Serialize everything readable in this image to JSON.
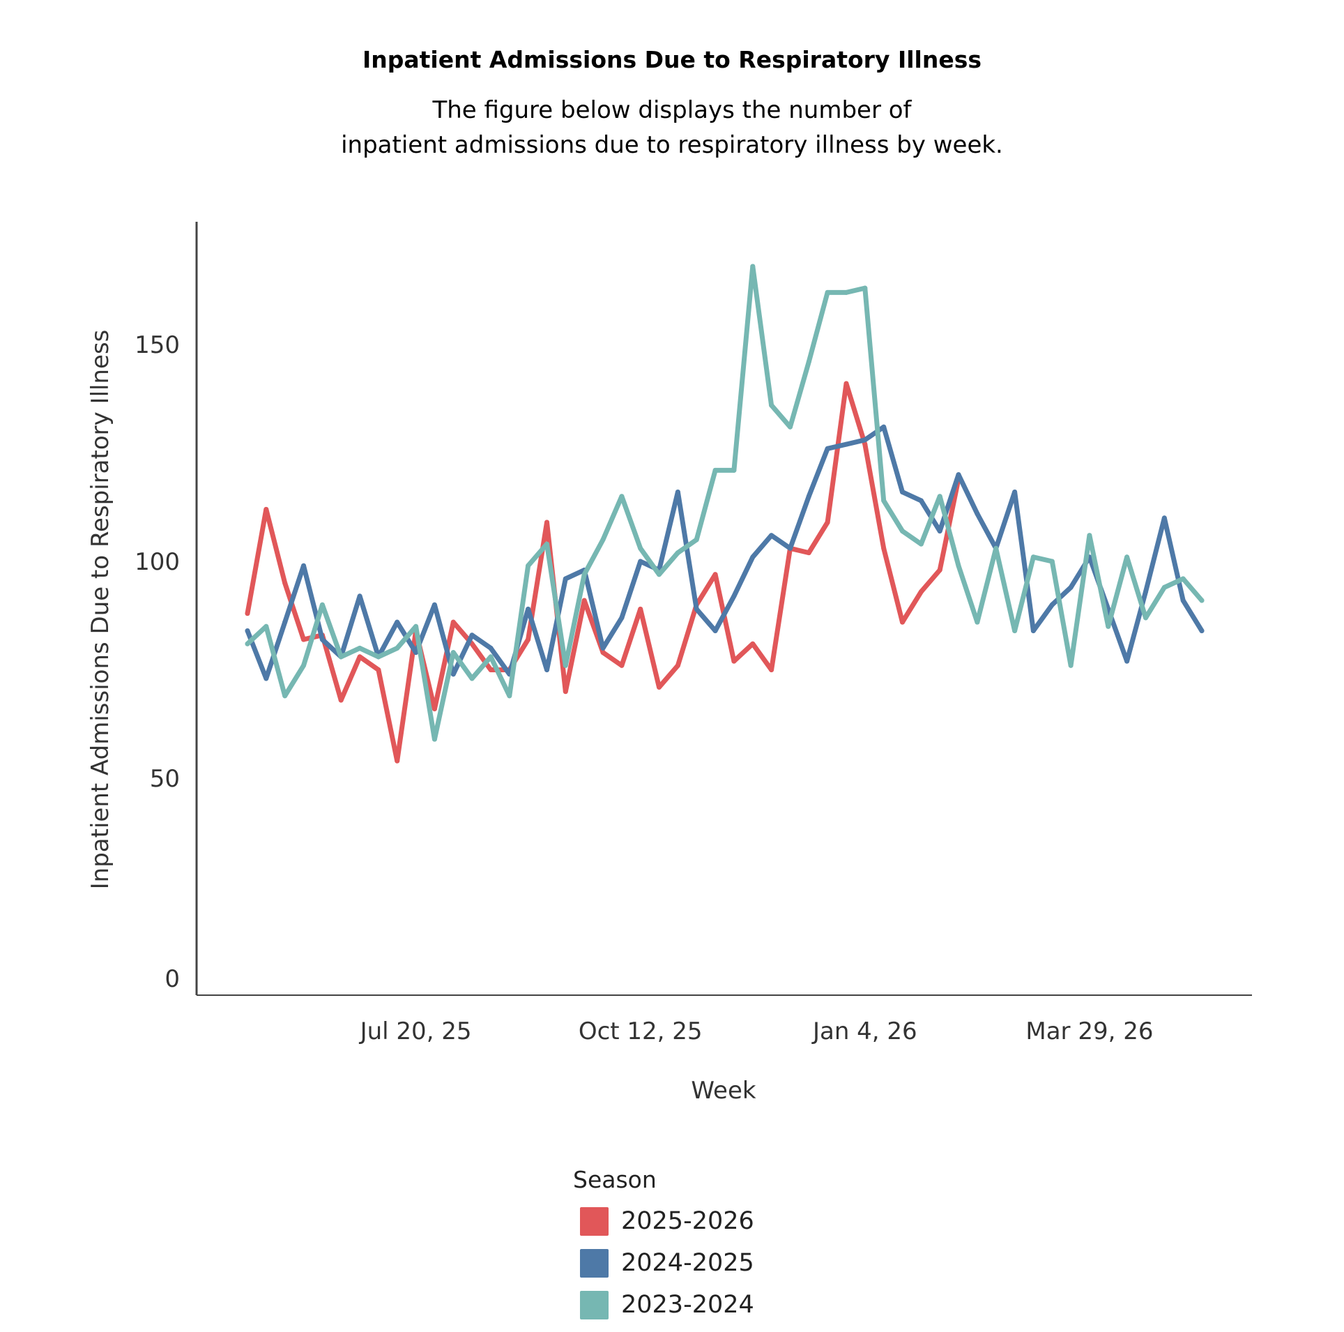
{
  "header": {
    "title": "Inpatient Admissions Due to Respiratory Illness",
    "subtitle_line1": "The figure below displays the number of",
    "subtitle_line2": "inpatient admissions due to respiratory illness by week."
  },
  "legend": {
    "title": "Season",
    "items": [
      {
        "label": "2025-2026",
        "color": "#e15759"
      },
      {
        "label": "2024-2025",
        "color": "#4e79a7"
      },
      {
        "label": "2023-2024",
        "color": "#76b7b2"
      }
    ]
  },
  "chart_data": {
    "type": "line",
    "title": "Inpatient Admissions Due to Respiratory Illness",
    "xlabel": "Week",
    "ylabel": "Inpatient Admissions Due to Respiratory Illness",
    "ylim": [
      0,
      180
    ],
    "yticks": [
      0,
      50,
      100,
      150
    ],
    "ytick_labels": [
      "0",
      "50",
      "100",
      "150"
    ],
    "x_count": 52,
    "xticks": [
      {
        "index": 9,
        "label": "Jul 20, 25"
      },
      {
        "index": 21,
        "label": "Oct 12, 25"
      },
      {
        "index": 33,
        "label": "Jan 4, 26"
      },
      {
        "index": 45,
        "label": "Mar 29, 26"
      }
    ],
    "grid": false,
    "legend_position": "bottom-center",
    "series": [
      {
        "name": "2025-2026",
        "color": "#e15759",
        "values": [
          88,
          112,
          95,
          82,
          83,
          68,
          78,
          75,
          54,
          84,
          66,
          86,
          81,
          75,
          75,
          82,
          109,
          70,
          91,
          79,
          76,
          89,
          71,
          76,
          90,
          97,
          77,
          81,
          75,
          103,
          102,
          109,
          141,
          127,
          103,
          86,
          93,
          98,
          119
        ]
      },
      {
        "name": "2024-2025",
        "color": "#4e79a7",
        "values": [
          84,
          73,
          86,
          99,
          82,
          78,
          92,
          78,
          86,
          79,
          90,
          74,
          83,
          80,
          74,
          89,
          75,
          96,
          98,
          80,
          87,
          100,
          98,
          116,
          89,
          84,
          92,
          101,
          106,
          103,
          115,
          126,
          127,
          128,
          131,
          116,
          114,
          107,
          120,
          111,
          103,
          116,
          84,
          90,
          94,
          101,
          89,
          77,
          93,
          110,
          91,
          84
        ]
      },
      {
        "name": "2023-2024",
        "color": "#76b7b2",
        "values": [
          81,
          85,
          69,
          76,
          90,
          78,
          80,
          78,
          80,
          85,
          59,
          79,
          73,
          78,
          69,
          99,
          104,
          76,
          97,
          105,
          115,
          103,
          97,
          102,
          105,
          121,
          121,
          168,
          136,
          131,
          146,
          162,
          162,
          163,
          114,
          107,
          104,
          115,
          99,
          86,
          103,
          84,
          101,
          100,
          76,
          106,
          85,
          101,
          87,
          94,
          96,
          91
        ]
      }
    ]
  }
}
